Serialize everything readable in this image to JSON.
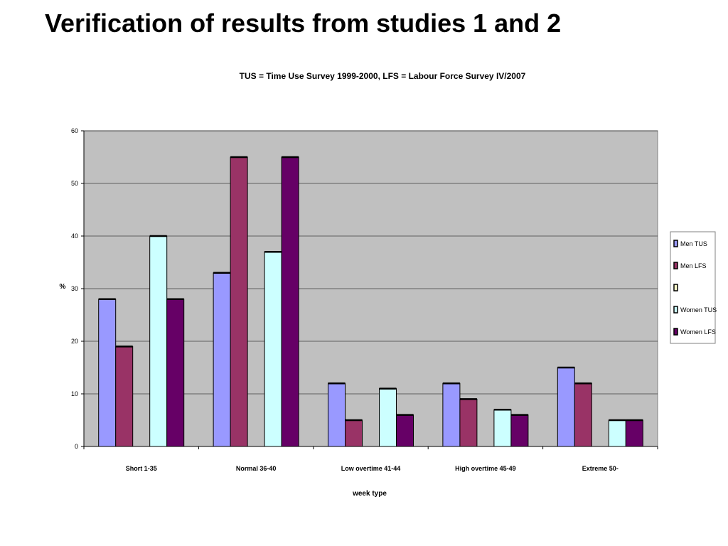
{
  "slide": {
    "title": "Verification of results from studies 1 and 2"
  },
  "chart_data": {
    "type": "bar",
    "title": "TUS = Time Use Survey 1999-2000, LFS = Labour Force Survey IV/2007",
    "xlabel": "week type",
    "ylabel": "%",
    "ylim": [
      0,
      60
    ],
    "yticks": [
      0,
      10,
      20,
      30,
      40,
      50,
      60
    ],
    "grid": true,
    "legend_position": "right",
    "categories": [
      "Short 1-35",
      "Normal 36-40",
      "Low overtime 41-44",
      "High overtime 45-49",
      "Extreme 50-"
    ],
    "series": [
      {
        "name": "Men TUS",
        "color": "#9999ff",
        "values": [
          28,
          33,
          12,
          12,
          15
        ]
      },
      {
        "name": "Men LFS",
        "color": "#993366",
        "values": [
          19,
          55,
          5,
          9,
          12
        ]
      },
      {
        "name": "",
        "color": "#ffffcc",
        "values": [
          null,
          null,
          null,
          null,
          null
        ]
      },
      {
        "name": "Women TUS",
        "color": "#ccffff",
        "values": [
          40,
          37,
          11,
          7,
          5
        ]
      },
      {
        "name": "Women LFS",
        "color": "#660066",
        "values": [
          28,
          55,
          6,
          6,
          5
        ]
      }
    ],
    "plot_background": "#c0c0c0"
  }
}
